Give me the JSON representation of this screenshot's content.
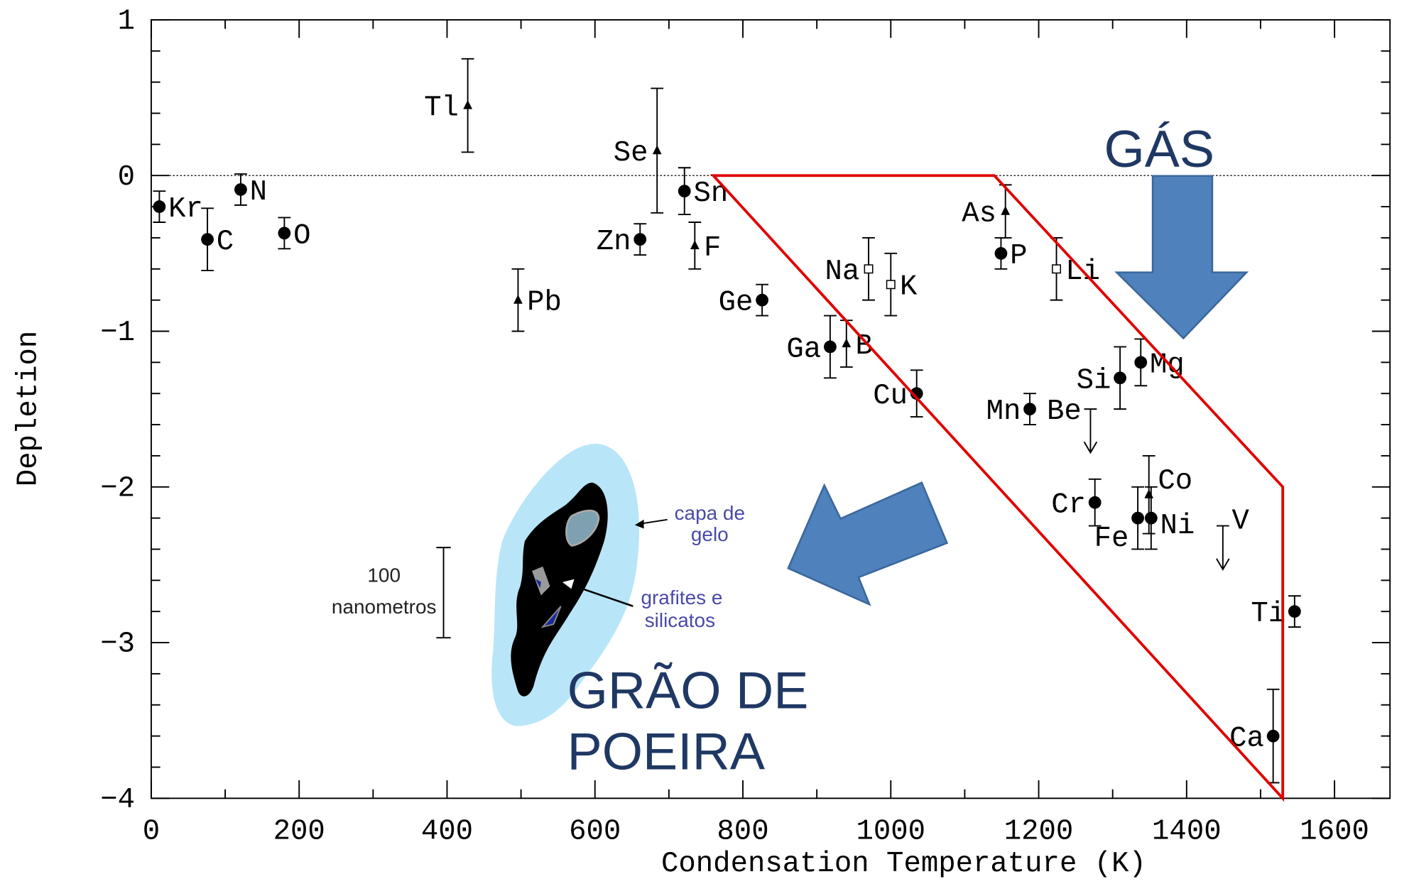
{
  "chart_data": {
    "type": "scatter",
    "x_label": "Condensation Temperature (K)",
    "y_label": "Depletion",
    "xlim": [
      0,
      1675
    ],
    "ylim": [
      -4,
      1
    ],
    "xticks": [
      0,
      200,
      400,
      600,
      800,
      1000,
      1200,
      1400,
      1600
    ],
    "xminorticks": [
      100,
      300,
      500,
      700,
      900,
      1100,
      1300,
      1500
    ],
    "yticks": [
      {
        "value": -4,
        "label": "−4"
      },
      {
        "value": -3,
        "label": "−3"
      },
      {
        "value": -2,
        "label": "−2"
      },
      {
        "value": -1,
        "label": "−1"
      },
      0,
      1
    ],
    "yminorticks": [
      -3.8,
      -3.6,
      -3.4,
      -3.2,
      -2.8,
      -2.6,
      -2.4,
      -2.2,
      -1.8,
      -1.6,
      -1.4,
      -1.2,
      -0.8,
      -0.6,
      -0.4,
      -0.2,
      0.2,
      0.4,
      0.6,
      0.8
    ],
    "reference_line": 0,
    "points": [
      {
        "label": "Kr",
        "x": 11,
        "y": -0.2,
        "err": 0.1,
        "marker": "circle"
      },
      {
        "label": "C",
        "x": 76,
        "y": -0.41,
        "err": 0.2,
        "marker": "circle"
      },
      {
        "label": "N",
        "x": 121,
        "y": -0.09,
        "err": 0.1,
        "marker": "circle"
      },
      {
        "label": "O",
        "x": 180,
        "y": -0.37,
        "err": 0.1,
        "marker": "circle"
      },
      {
        "label": "Tl",
        "x": 428,
        "y": 0.45,
        "err": 0.3,
        "marker": "triangle"
      },
      {
        "label": "Pb",
        "x": 496,
        "y": -0.8,
        "err": 0.2,
        "marker": "triangle"
      },
      {
        "label": "Se",
        "x": 684,
        "y": 0.16,
        "err": 0.4,
        "marker": "triangle"
      },
      {
        "label": "Zn",
        "x": 661,
        "y": -0.41,
        "err": 0.1,
        "marker": "circle"
      },
      {
        "label": "Sn",
        "x": 721,
        "y": -0.1,
        "err": 0.15,
        "marker": "circle"
      },
      {
        "label": "F",
        "x": 735,
        "y": -0.45,
        "err": 0.15,
        "marker": "triangle"
      },
      {
        "label": "Ge",
        "x": 826,
        "y": -0.8,
        "err": 0.1,
        "marker": "circle"
      },
      {
        "label": "Ga",
        "x": 918,
        "y": -1.1,
        "err": 0.2,
        "marker": "circle"
      },
      {
        "label": "B",
        "x": 940,
        "y": -1.08,
        "err": 0.15,
        "marker": "triangle"
      },
      {
        "label": "Na",
        "x": 970,
        "y": -0.6,
        "err": 0.2,
        "marker": "square"
      },
      {
        "label": "K",
        "x": 1000,
        "y": -0.7,
        "err": 0.2,
        "marker": "square"
      },
      {
        "label": "Cu",
        "x": 1035,
        "y": -1.4,
        "err": 0.15,
        "marker": "circle"
      },
      {
        "label": "As",
        "x": 1155,
        "y": -0.23,
        "err": 0.17,
        "marker": "triangle"
      },
      {
        "label": "P",
        "x": 1149,
        "y": -0.5,
        "err": 0.1,
        "marker": "circle"
      },
      {
        "label": "Li",
        "x": 1224,
        "y": -0.6,
        "err": 0.2,
        "marker": "square"
      },
      {
        "label": "Mn",
        "x": 1188,
        "y": -1.5,
        "err": 0.1,
        "marker": "circle"
      },
      {
        "label": "Be",
        "x": 1270,
        "y": -1.5,
        "marker": "arrow"
      },
      {
        "label": "Si",
        "x": 1310,
        "y": -1.3,
        "err": 0.2,
        "marker": "circle"
      },
      {
        "label": "Mg",
        "x": 1338,
        "y": -1.2,
        "err": 0.15,
        "marker": "circle"
      },
      {
        "label": "Cr",
        "x": 1276,
        "y": -2.1,
        "err": 0.15,
        "marker": "circle"
      },
      {
        "label": "Fe",
        "x": 1334,
        "y": -2.2,
        "err": 0.2,
        "marker": "circle"
      },
      {
        "label": "Co",
        "x": 1349,
        "y": -2.05,
        "err": 0.25,
        "marker": "triangle"
      },
      {
        "label": "Ni",
        "x": 1352,
        "y": -2.2,
        "err": 0.2,
        "marker": "circle"
      },
      {
        "label": "V",
        "x": 1449,
        "y": -2.25,
        "marker": "arrow"
      },
      {
        "label": "Ti",
        "x": 1546,
        "y": -2.8,
        "err": 0.1,
        "marker": "circle"
      },
      {
        "label": "Ca",
        "x": 1517,
        "y": -3.6,
        "err": 0.3,
        "marker": "circle"
      }
    ],
    "region": {
      "color": "#e00000",
      "vertices": [
        [
          760,
          0
        ],
        [
          1140,
          0
        ],
        [
          1530,
          -2
        ],
        [
          1530,
          -4
        ]
      ]
    },
    "annotations": {
      "gas": "GÁS",
      "grain": [
        "GRÃO DE",
        "POEIRA"
      ],
      "ice": [
        "capa de",
        "gelo"
      ],
      "core": [
        "grafites e",
        "silicatos"
      ],
      "scale": [
        "100",
        "nanometros"
      ]
    }
  }
}
